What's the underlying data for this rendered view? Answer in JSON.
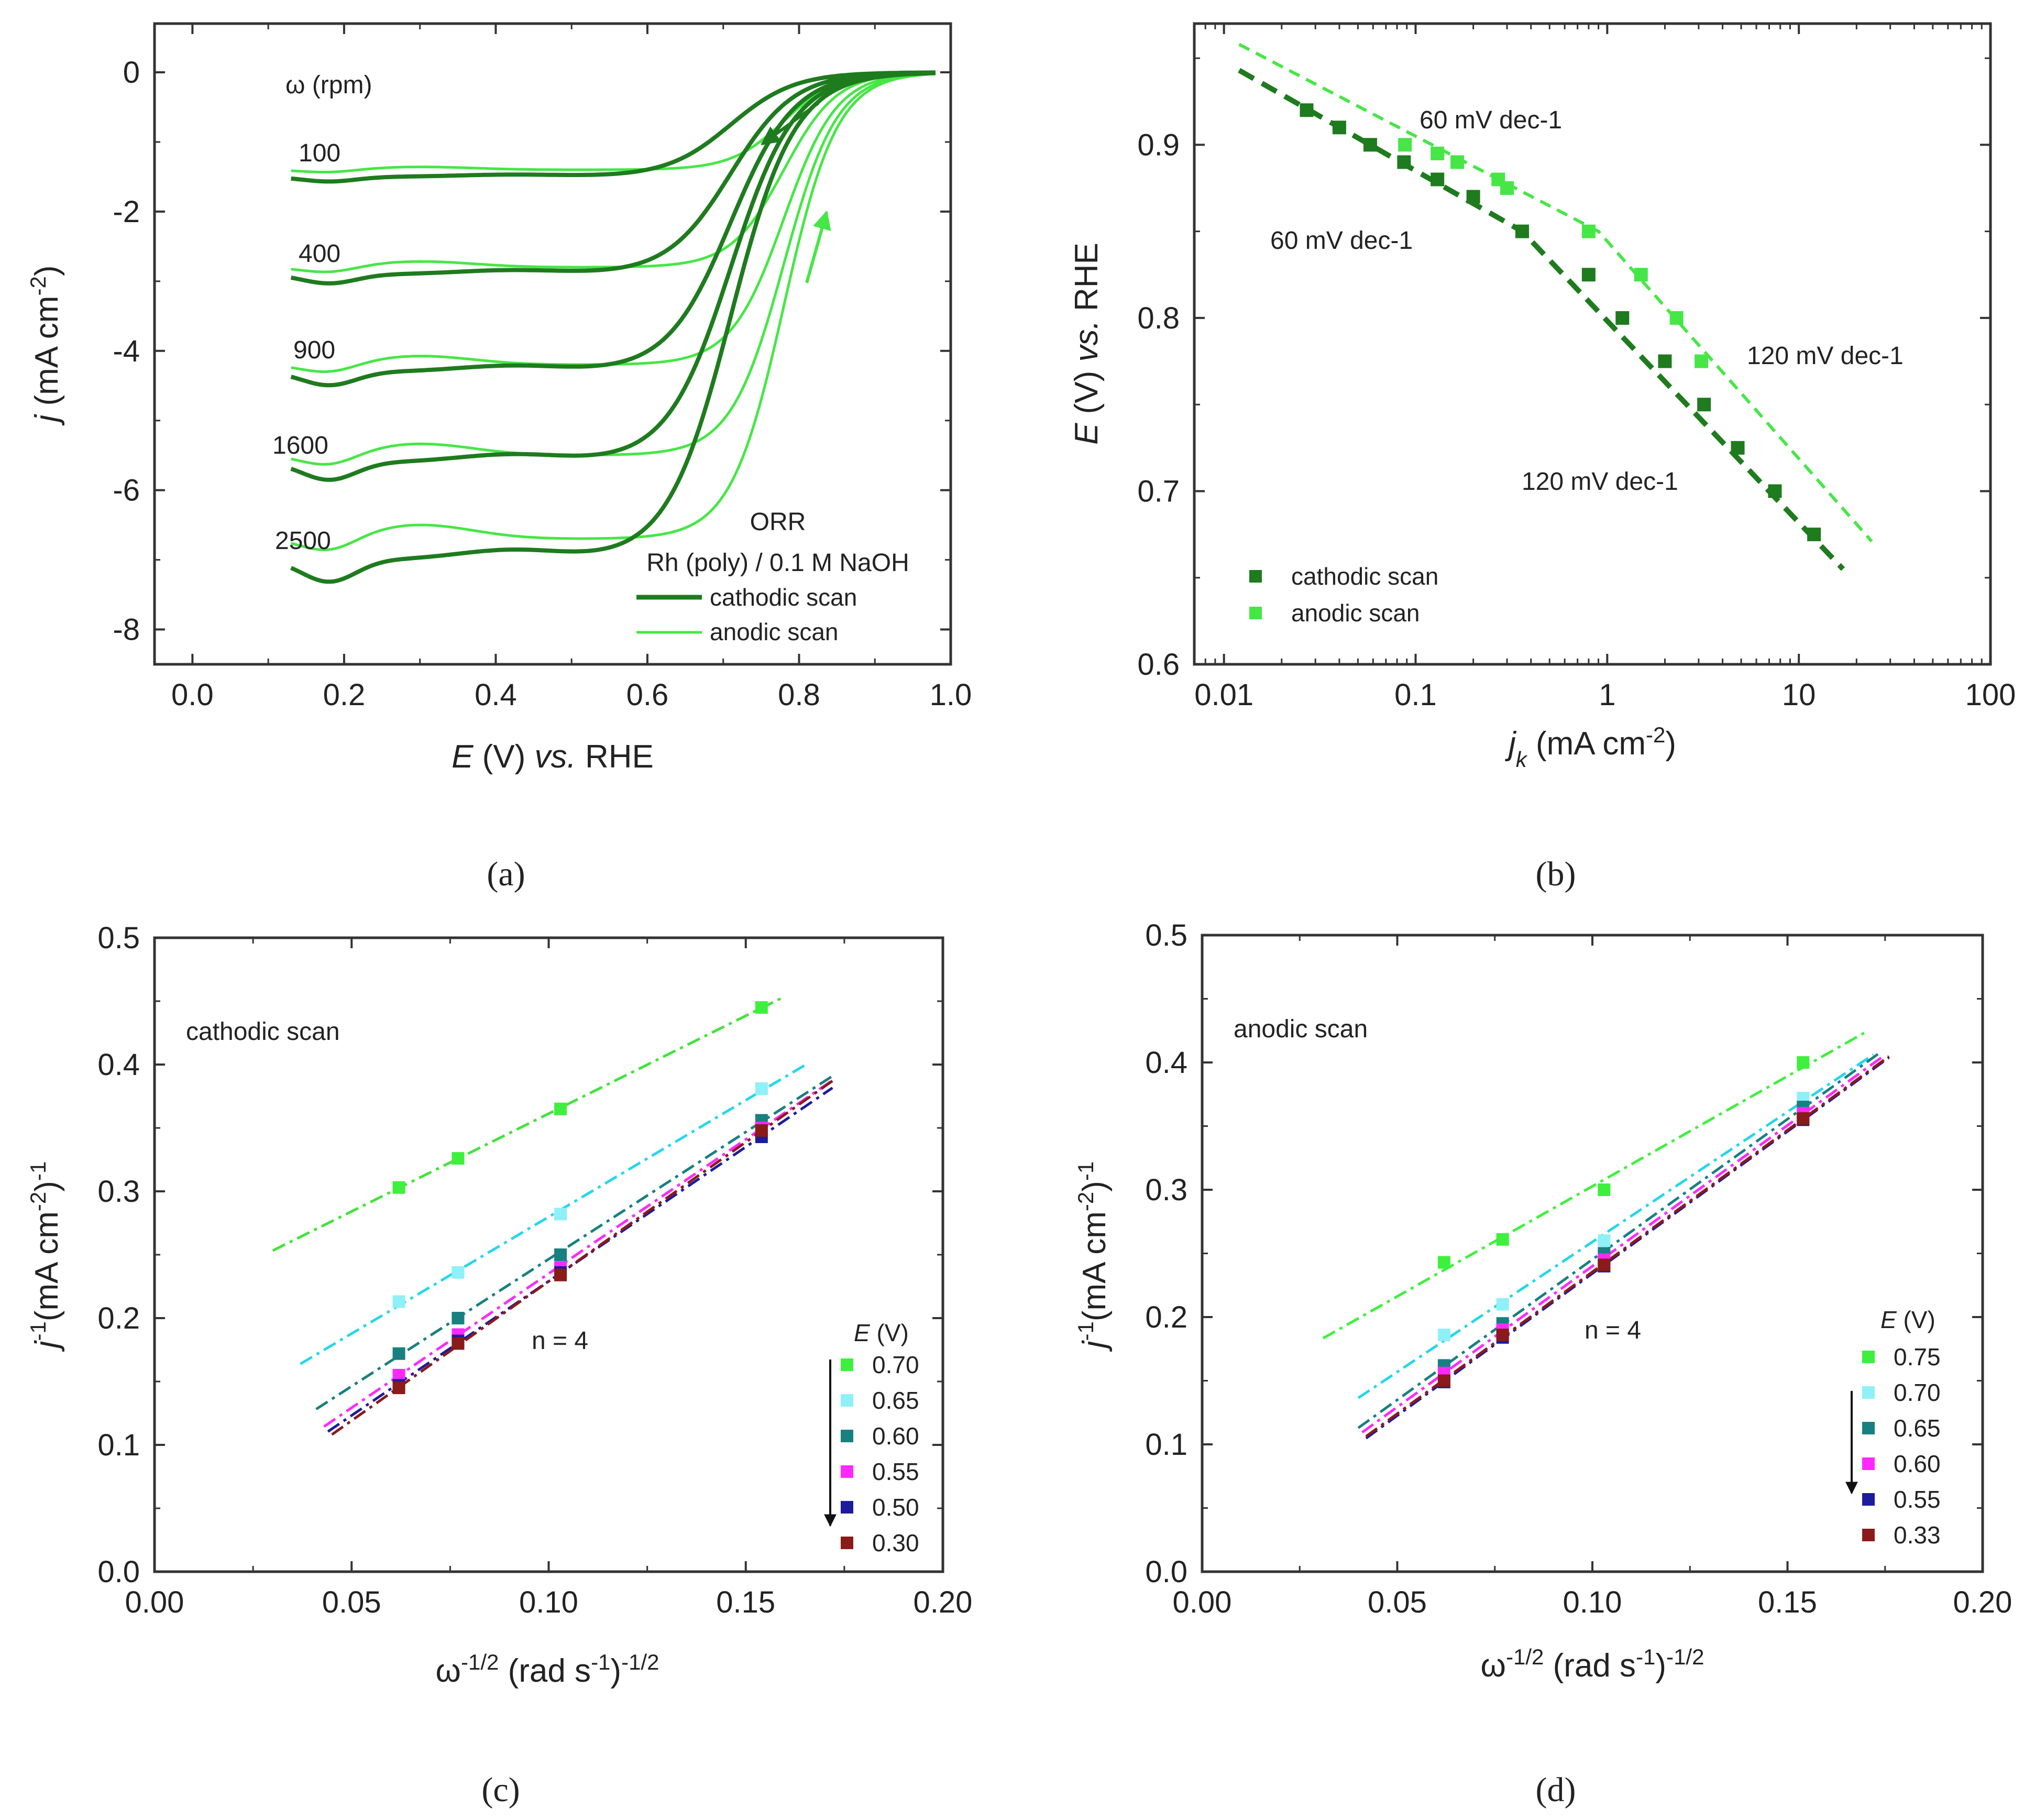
{
  "colors": {
    "cathodic": "#1e7b1e",
    "anodic": "#46e646",
    "c070": "#3ef03e",
    "c065": "#8ff0f8",
    "c060": "#188080",
    "c055": "#ff28ff",
    "c050": "#1c1c9c",
    "c030": "#8b1a1a",
    "d075": "#3ef03e",
    "d070": "#8ff0f8",
    "d065": "#188080",
    "d060": "#ff28ff",
    "d055": "#1c1c9c",
    "d033": "#8b1a1a",
    "lineC070": "#41e33a",
    "lineC065": "#25d6ee"
  },
  "panel_labels": [
    "(a)",
    "(b)",
    "(c)",
    "(d)"
  ],
  "chart_data": [
    {
      "id": "a",
      "type": "line",
      "xlabel": "E (V) vs. RHE",
      "ylabel": "j (mA cm-2)",
      "xlim": [
        -0.05,
        1.0
      ],
      "ylim": [
        -8.5,
        0.7
      ],
      "xticks": [
        "0.0",
        "0.2",
        "0.4",
        "0.6",
        "0.8",
        "1.0"
      ],
      "yticks": [
        "0",
        "-2",
        "-4",
        "-6",
        "-8"
      ],
      "rpm_header": "ω (rpm)",
      "rpm_labels": [
        "100",
        "400",
        "900",
        "1600",
        "2500"
      ],
      "annotation_title": "ORR",
      "annotation_system": "Rh (poly) / 0.1 M NaOH",
      "legend": [
        {
          "label": "cathodic scan",
          "color_key": "cathodic"
        },
        {
          "label": "anodic scan",
          "color_key": "anodic"
        }
      ],
      "limiting_currents": {
        "cathodic": [
          -1.5,
          -2.9,
          -4.3,
          -5.6,
          -7.0
        ],
        "anodic": [
          -1.4,
          -2.8,
          -4.2,
          -5.5,
          -6.7
        ]
      },
      "half_wave_potential_V": {
        "cathodic": 0.71,
        "anodic": 0.78
      }
    },
    {
      "id": "b",
      "type": "scatter",
      "xlabel": "jk (mA cm-2)",
      "ylabel": "E (V) vs. RHE",
      "xscale": "log",
      "xlim": [
        0.007,
        100
      ],
      "ylim": [
        0.6,
        0.97
      ],
      "xticks": [
        "0.01",
        "0.1",
        "1",
        "10",
        "100"
      ],
      "yticks": [
        "0.6",
        "0.7",
        "0.8",
        "0.9"
      ],
      "annotations": [
        "60 mV dec-1",
        "60 mV dec-1",
        "120 mV dec-1",
        "120 mV dec-1"
      ],
      "series": [
        {
          "name": "cathodic scan",
          "color_key": "cathodic",
          "x": [
            0.027,
            0.04,
            0.058,
            0.087,
            0.13,
            0.2,
            0.36,
            0.8,
            1.2,
            2.0,
            3.2,
            4.8,
            7.5,
            12
          ],
          "y": [
            0.92,
            0.91,
            0.9,
            0.89,
            0.88,
            0.87,
            0.85,
            0.825,
            0.8,
            0.775,
            0.75,
            0.725,
            0.7,
            0.675
          ]
        },
        {
          "name": "anodic scan",
          "color_key": "anodic",
          "x": [
            0.088,
            0.13,
            0.165,
            0.27,
            0.3,
            0.8,
            1.5,
            2.3,
            3.1
          ],
          "y": [
            0.9,
            0.895,
            0.89,
            0.88,
            0.875,
            0.85,
            0.825,
            0.8,
            0.775
          ]
        }
      ]
    },
    {
      "id": "c",
      "type": "scatter",
      "xlabel": "ω-1/2 (rad s-1)-1/2",
      "ylabel": "j-1 (mA cm-2)-1",
      "xlim": [
        0.0,
        0.2
      ],
      "ylim": [
        0.0,
        0.5
      ],
      "xticks": [
        "0.00",
        "0.05",
        "0.10",
        "0.15",
        "0.20"
      ],
      "yticks": [
        "0.0",
        "0.1",
        "0.2",
        "0.3",
        "0.4",
        "0.5"
      ],
      "scan_label": "cathodic scan",
      "n_label": "n = 4",
      "legend_title": "E (V)",
      "x": [
        0.062,
        0.077,
        0.103,
        0.154
      ],
      "series": [
        {
          "name": "0.70",
          "color_key": "c070",
          "values": [
            0.303,
            0.326,
            0.365,
            0.445
          ],
          "fit_x": [
            0.03,
            0.16
          ]
        },
        {
          "name": "0.65",
          "color_key": "c065",
          "values": [
            0.213,
            0.236,
            0.282,
            0.381
          ],
          "fit_x": [
            0.037,
            0.166
          ]
        },
        {
          "name": "0.60",
          "color_key": "c060",
          "values": [
            0.172,
            0.2,
            0.25,
            0.356
          ],
          "fit_x": [
            0.041,
            0.172
          ]
        },
        {
          "name": "0.55",
          "color_key": "c055",
          "values": [
            0.155,
            0.187,
            0.24,
            0.35
          ],
          "fit_x": [
            0.043,
            0.172
          ]
        },
        {
          "name": "0.50",
          "color_key": "c050",
          "values": [
            0.147,
            0.182,
            0.236,
            0.343
          ],
          "fit_x": [
            0.044,
            0.172
          ]
        },
        {
          "name": "0.30",
          "color_key": "c030",
          "values": [
            0.145,
            0.18,
            0.234,
            0.348
          ],
          "fit_x": [
            0.045,
            0.172
          ]
        }
      ]
    },
    {
      "id": "d",
      "type": "scatter",
      "xlabel": "ω-1/2 (rad s-1)-1/2",
      "ylabel": "j-1 (mA cm-2)-1",
      "xlim": [
        0.0,
        0.2
      ],
      "ylim": [
        0.0,
        0.5
      ],
      "xticks": [
        "0.00",
        "0.05",
        "0.10",
        "0.15",
        "0.20"
      ],
      "yticks": [
        "0.0",
        "0.1",
        "0.2",
        "0.3",
        "0.4",
        "0.5"
      ],
      "scan_label": "anodic scan",
      "n_label": "n = 4",
      "legend_title": "E (V)",
      "x": [
        0.062,
        0.077,
        0.103,
        0.154
      ],
      "series": [
        {
          "name": "0.75",
          "color_key": "d075",
          "values": [
            0.243,
            0.261,
            0.3,
            0.4
          ],
          "fit_x": [
            0.031,
            0.17
          ]
        },
        {
          "name": "0.70",
          "color_key": "d070",
          "values": [
            0.186,
            0.21,
            0.26,
            0.372
          ],
          "fit_x": [
            0.04,
            0.172
          ]
        },
        {
          "name": "0.65",
          "color_key": "d065",
          "values": [
            0.162,
            0.195,
            0.25,
            0.365
          ],
          "fit_x": [
            0.04,
            0.174
          ]
        },
        {
          "name": "0.60",
          "color_key": "d060",
          "values": [
            0.156,
            0.19,
            0.245,
            0.36
          ],
          "fit_x": [
            0.041,
            0.174
          ]
        },
        {
          "name": "0.55",
          "color_key": "d055",
          "values": [
            0.149,
            0.184,
            0.24,
            0.355
          ],
          "fit_x": [
            0.042,
            0.176
          ]
        },
        {
          "name": "0.33",
          "color_key": "d033",
          "values": [
            0.15,
            0.186,
            0.241,
            0.356
          ],
          "fit_x": [
            0.042,
            0.176
          ]
        }
      ]
    }
  ]
}
